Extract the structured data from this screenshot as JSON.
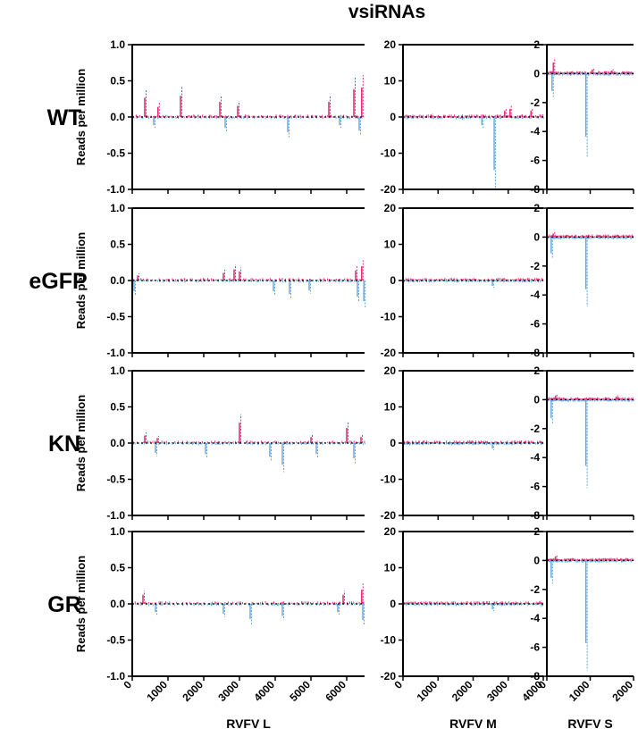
{
  "title": "vsiRNAs",
  "rows": [
    "WT",
    "eGFP",
    "KN",
    "GR"
  ],
  "y_label": "Reads per million",
  "colors": {
    "sense": "#e8307a",
    "antisense": "#5aa6e6"
  },
  "chart_data": [
    {
      "type": "bar",
      "segment": "RVFV L",
      "xlabel": "RVFV L",
      "xlim": [
        0,
        6500
      ],
      "xticks": [
        "0",
        "1000",
        "2000",
        "3000",
        "4000",
        "5000",
        "6000"
      ],
      "ylim": [
        -1.0,
        1.0
      ],
      "yticks": [
        "-1.0",
        "-0.5",
        "0.0",
        "0.5",
        "1.0"
      ],
      "series": [
        {
          "row": "WT",
          "sense_peaks": [
            [
              350,
              0.38
            ],
            [
              720,
              0.2
            ],
            [
              1350,
              0.42
            ],
            [
              2450,
              0.3
            ],
            [
              2950,
              0.22
            ],
            [
              5500,
              0.3
            ],
            [
              6200,
              0.55
            ],
            [
              6420,
              0.58
            ]
          ],
          "antisense_peaks": [
            [
              600,
              -0.15
            ],
            [
              2600,
              -0.2
            ],
            [
              4350,
              -0.28
            ],
            [
              5800,
              -0.15
            ],
            [
              6350,
              -0.25
            ]
          ]
        },
        {
          "row": "eGFP",
          "sense_peaks": [
            [
              150,
              0.1
            ],
            [
              2550,
              0.15
            ],
            [
              2850,
              0.22
            ],
            [
              3000,
              0.18
            ],
            [
              6250,
              0.2
            ],
            [
              6420,
              0.28
            ]
          ],
          "antisense_peaks": [
            [
              50,
              -0.2
            ],
            [
              3950,
              -0.2
            ],
            [
              4400,
              -0.25
            ],
            [
              4950,
              -0.18
            ],
            [
              6300,
              -0.3
            ],
            [
              6480,
              -0.38
            ]
          ]
        },
        {
          "row": "KN",
          "sense_peaks": [
            [
              350,
              0.15
            ],
            [
              700,
              0.1
            ],
            [
              3000,
              0.4
            ],
            [
              5000,
              0.12
            ],
            [
              6000,
              0.3
            ],
            [
              6400,
              0.12
            ]
          ],
          "antisense_peaks": [
            [
              650,
              -0.18
            ],
            [
              2050,
              -0.2
            ],
            [
              3850,
              -0.25
            ],
            [
              4200,
              -0.4
            ],
            [
              5150,
              -0.2
            ],
            [
              6200,
              -0.28
            ]
          ]
        },
        {
          "row": "GR",
          "sense_peaks": [
            [
              300,
              0.18
            ],
            [
              5900,
              0.18
            ],
            [
              6420,
              0.28
            ]
          ],
          "antisense_peaks": [
            [
              650,
              -0.15
            ],
            [
              2550,
              -0.18
            ],
            [
              3300,
              -0.28
            ],
            [
              4200,
              -0.22
            ],
            [
              5750,
              -0.15
            ],
            [
              6450,
              -0.3
            ]
          ]
        }
      ]
    },
    {
      "type": "bar",
      "segment": "RVFV M",
      "xlabel": "RVFV M",
      "xlim": [
        0,
        4000
      ],
      "xticks": [
        "0",
        "1000",
        "2000",
        "3000",
        "4000"
      ],
      "ylim": [
        -20,
        20
      ],
      "yticks": [
        "-20",
        "-10",
        "0",
        "10",
        "20"
      ],
      "series": [
        {
          "row": "WT",
          "sense_peaks": [
            [
              800,
              1.0
            ],
            [
              2900,
              2.5
            ],
            [
              3050,
              3.2
            ],
            [
              3650,
              2.5
            ]
          ],
          "antisense_peaks": [
            [
              1700,
              -1.0
            ],
            [
              2250,
              -3.0
            ],
            [
              2600,
              -19.5
            ]
          ]
        },
        {
          "row": "eGFP",
          "sense_peaks": [
            [
              3850,
              0.8
            ]
          ],
          "antisense_peaks": [
            [
              2550,
              -2.0
            ]
          ]
        },
        {
          "row": "KN",
          "sense_peaks": [
            [
              3900,
              0.6
            ]
          ],
          "antisense_peaks": [
            [
              2550,
              -2.0
            ]
          ]
        },
        {
          "row": "GR",
          "sense_peaks": [
            [
              3900,
              1.0
            ]
          ],
          "antisense_peaks": [
            [
              2550,
              -2.0
            ]
          ]
        }
      ]
    },
    {
      "type": "bar",
      "segment": "RVFV S",
      "xlabel": "RVFV S",
      "xlim": [
        0,
        2000
      ],
      "xticks": [
        "0",
        "1000",
        "2000"
      ],
      "ylim": [
        -8,
        2
      ],
      "yticks": [
        "-8",
        "-6",
        "-4",
        "-2",
        "0",
        "2"
      ],
      "series": [
        {
          "row": "WT",
          "sense_peaks": [
            [
              150,
              1.1
            ],
            [
              1050,
              0.4
            ],
            [
              1500,
              0.3
            ]
          ],
          "antisense_peaks": [
            [
              120,
              -1.6
            ],
            [
              900,
              -5.8
            ]
          ]
        },
        {
          "row": "eGFP",
          "sense_peaks": [
            [
              150,
              0.35
            ]
          ],
          "antisense_peaks": [
            [
              100,
              -1.5
            ],
            [
              900,
              -4.8
            ]
          ]
        },
        {
          "row": "KN",
          "sense_peaks": [
            [
              200,
              0.4
            ],
            [
              1600,
              0.3
            ]
          ],
          "antisense_peaks": [
            [
              100,
              -1.7
            ],
            [
              900,
              -6.1
            ]
          ]
        },
        {
          "row": "GR",
          "sense_peaks": [
            [
              200,
              0.4
            ]
          ],
          "antisense_peaks": [
            [
              100,
              -1.6
            ],
            [
              900,
              -7.6
            ]
          ]
        }
      ]
    }
  ]
}
